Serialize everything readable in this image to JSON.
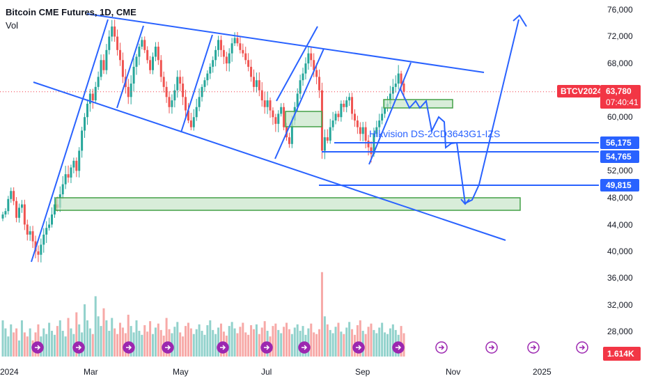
{
  "legend": {
    "title": "Bitcoin CME Futures, 1D, CME",
    "vol_label": "Vol"
  },
  "annotation_text": "Hikvision DS-2CD3643G1-IZS",
  "colors": {
    "up": "#26a69a",
    "down": "#ef5350",
    "drawing": "#2962ff",
    "zone_fill": "#c8e6c9",
    "zone_stroke": "#43a047",
    "price_tag": "#f23645",
    "level_tag": "#2962ff",
    "event_icon": "#9c27b0"
  },
  "price_tag": {
    "symbol": "BTCV2024",
    "price": "63,780",
    "countdown": "07:40:41"
  },
  "volume_tag": "1.614K",
  "chart_data": {
    "type": "candlestick",
    "x_labels": [
      "2024",
      "Mar",
      "May",
      "Jul",
      "Sep",
      "Nov",
      "2025"
    ],
    "y_ticks": [
      "76,000",
      "72,000",
      "68,000",
      "60,000",
      "52,000",
      "48,000",
      "44,000",
      "40,000",
      "36,000",
      "32,000",
      "28,000"
    ],
    "level_tags": [
      "56,175",
      "54,765",
      "49,815"
    ],
    "ylim": [
      24000,
      78000
    ],
    "volume_ticks": [
      28000,
      32000,
      36000
    ],
    "current_price": 63780,
    "horizontal_levels": [
      {
        "price": 56175,
        "label": "56,175"
      },
      {
        "price": 54765,
        "label": "54,765"
      },
      {
        "price": 49815,
        "label": "49,815"
      }
    ],
    "candles_close": [
      45500,
      46000,
      47800,
      49000,
      47500,
      45000,
      46500,
      47000,
      44000,
      42500,
      43000,
      41500,
      40000,
      39500,
      41000,
      42500,
      43500,
      44000,
      45500,
      47000,
      46500,
      48500,
      50000,
      51500,
      51000,
      52500,
      53500,
      52000,
      55000,
      58000,
      60000,
      62000,
      63500,
      62500,
      64500,
      66000,
      68500,
      67000,
      70000,
      72000,
      73500,
      72000,
      70000,
      68500,
      66000,
      64500,
      63000,
      65000,
      67500,
      69000,
      70500,
      71500,
      70000,
      68500,
      67000,
      69000,
      70500,
      68500,
      66000,
      64500,
      63000,
      61500,
      62500,
      64000,
      66000,
      65000,
      63000,
      61000,
      59500,
      58500,
      60000,
      61500,
      63000,
      64500,
      65500,
      66500,
      67500,
      68500,
      70000,
      71500,
      70000,
      69000,
      68000,
      69500,
      71000,
      71800,
      71000,
      70000,
      69500,
      68500,
      67500,
      66000,
      64500,
      65500,
      64000,
      62500,
      61500,
      62500,
      61000,
      60000,
      59000,
      60500,
      61500,
      58500,
      57000,
      56000,
      59500,
      61500,
      63500,
      65500,
      66500,
      68000,
      69500,
      68500,
      67000,
      66000,
      64000,
      55000,
      57000,
      56500,
      58500,
      59500,
      60500,
      60000,
      62000,
      61500,
      62500,
      63000,
      60500,
      59500,
      58500,
      57500,
      58500,
      56500,
      55500,
      54500,
      57500,
      58500,
      59500,
      60500,
      61500,
      62000,
      63500,
      64500,
      65000,
      66500,
      65000,
      63780
    ],
    "volumes": [
      31500,
      30500,
      29500,
      31000,
      30000,
      30500,
      29000,
      31500,
      30000,
      29500,
      30500,
      29000,
      30000,
      31000,
      29500,
      30500,
      29800,
      31200,
      30200,
      29700,
      30800,
      31500,
      30200,
      29500,
      31800,
      30500,
      29800,
      32500,
      31000,
      30000,
      33500,
      31500,
      30500,
      29800,
      34500,
      32000,
      30800,
      33000,
      31500,
      30200,
      31800,
      30500,
      29800,
      31200,
      30600,
      29900,
      32200,
      30800,
      30000,
      31500,
      30200,
      29700,
      30900,
      30100,
      31400,
      29800,
      30600,
      31100,
      30300,
      29600,
      31800,
      30400,
      29900,
      30700,
      31300,
      30000,
      29500,
      30800,
      31200,
      30500,
      29800,
      30400,
      31000,
      30200,
      29700,
      30900,
      31500,
      30300,
      29800,
      30600,
      31100,
      30100,
      29600,
      30800,
      31300,
      30500,
      29900,
      30700,
      31200,
      30000,
      29700,
      30900,
      30400,
      31000,
      29800,
      30600,
      31400,
      30200,
      29500,
      30800,
      31100,
      30300,
      29900,
      30700,
      31200,
      30400,
      29800,
      30600,
      31000,
      30200,
      30800,
      29700,
      30500,
      31100,
      30000,
      29800,
      30400,
      37500,
      32000,
      31000,
      30300,
      29900,
      30700,
      31200,
      30100,
      29800,
      30600,
      31300,
      30400,
      29700,
      30900,
      31500,
      30200,
      29800,
      30700,
      31100,
      30300,
      29900,
      30600,
      31200,
      30000,
      29800,
      30500,
      31000,
      30300,
      29700,
      30800,
      29900
    ]
  }
}
